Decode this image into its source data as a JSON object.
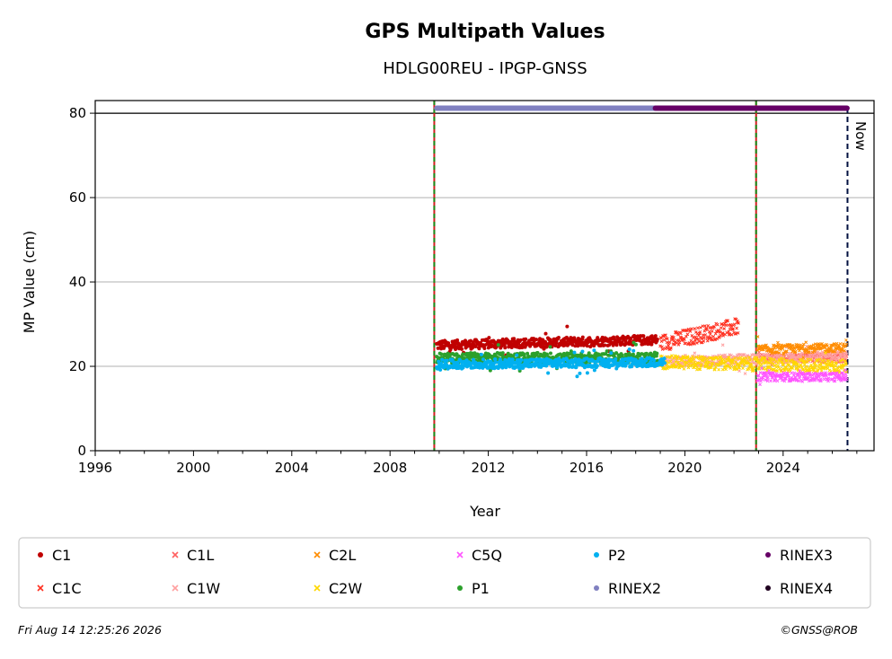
{
  "chart_data": {
    "type": "scatter",
    "title": "GPS Multipath Values",
    "subtitle": "HDLG00REU - IPGP-GNSS",
    "xlabel": "Year",
    "ylabel": "MP Value (cm)",
    "xlim": [
      1996,
      2027.7
    ],
    "ylim": [
      0,
      83
    ],
    "xticks": [
      "1996",
      "2000",
      "2004",
      "2008",
      "2012",
      "2016",
      "2020",
      "2024"
    ],
    "yticks": [
      "0",
      "20",
      "40",
      "60",
      "80"
    ],
    "grid": "horizontal",
    "legend_position": "bottom",
    "now_label": "Now",
    "now_x": 2026.62,
    "vertical_markers": [
      2009.8,
      2022.9
    ],
    "reference_line_y": 80,
    "series": [
      {
        "name": "C1",
        "color": "#c00000",
        "marker": "dot",
        "x_range": [
          2009.9,
          2018.9
        ],
        "level": [
          25.0,
          26.3
        ],
        "spread": 1.1
      },
      {
        "name": "C1C",
        "color": "#ff3020",
        "marker": "x",
        "x_range": [
          2019.0,
          2022.2
        ],
        "level": [
          25.5,
          29.5
        ],
        "spread": 2.0
      },
      {
        "name": "C1L",
        "color": "#ff6060",
        "marker": "x",
        "x_range": [
          2022.95,
          2026.6
        ],
        "level": [
          22.0,
          22.0
        ],
        "spread": 1.0
      },
      {
        "name": "C1W",
        "color": "#ffa0a0",
        "marker": "x",
        "x_range": [
          2019.0,
          2026.6
        ],
        "level": [
          21.0,
          22.5
        ],
        "spread": 1.2
      },
      {
        "name": "C2L",
        "color": "#ff8c00",
        "marker": "x",
        "x_range": [
          2022.95,
          2026.6
        ],
        "level": [
          24.0,
          24.5
        ],
        "spread": 1.0
      },
      {
        "name": "C2W",
        "color": "#ffd700",
        "marker": "x",
        "x_range": [
          2019.0,
          2026.6
        ],
        "level": [
          21.0,
          20.0
        ],
        "spread": 1.6
      },
      {
        "name": "C5Q",
        "color": "#ff55ff",
        "marker": "x",
        "x_range": [
          2022.95,
          2026.6
        ],
        "level": [
          17.5,
          17.5
        ],
        "spread": 1.0
      },
      {
        "name": "P1",
        "color": "#2ca02c",
        "marker": "dot",
        "x_range": [
          2009.9,
          2018.9
        ],
        "level": [
          22.0,
          22.0
        ],
        "spread": 1.2
      },
      {
        "name": "P2",
        "color": "#00b0f0",
        "marker": "dot",
        "x_range": [
          2009.9,
          2019.2
        ],
        "level": [
          20.5,
          21.0
        ],
        "spread": 1.1
      },
      {
        "name": "RINEX2",
        "color": "#8080c0",
        "marker": "dot",
        "x_range": [
          2009.9,
          2018.8
        ],
        "level": [
          81.2,
          81.2
        ],
        "spread": 0
      },
      {
        "name": "RINEX3",
        "color": "#660066",
        "marker": "dot",
        "x_range": [
          2018.8,
          2026.6
        ],
        "level": [
          81.2,
          81.2
        ],
        "spread": 0
      },
      {
        "name": "RINEX4",
        "color": "#200020",
        "marker": "dot",
        "x_range": [],
        "level": [
          81.2,
          81.2
        ],
        "spread": 0
      }
    ],
    "legend_columns": [
      [
        "C1",
        "C1C"
      ],
      [
        "C1L",
        "C1W"
      ],
      [
        "C2L",
        "C2W"
      ],
      [
        "C5Q",
        "P1"
      ],
      [
        "P2",
        "RINEX2"
      ],
      [
        "RINEX3",
        "RINEX4"
      ]
    ]
  },
  "footer": {
    "timestamp": "Fri Aug 14 12:25:26 2026",
    "copyright": "©GNSS@ROB"
  }
}
